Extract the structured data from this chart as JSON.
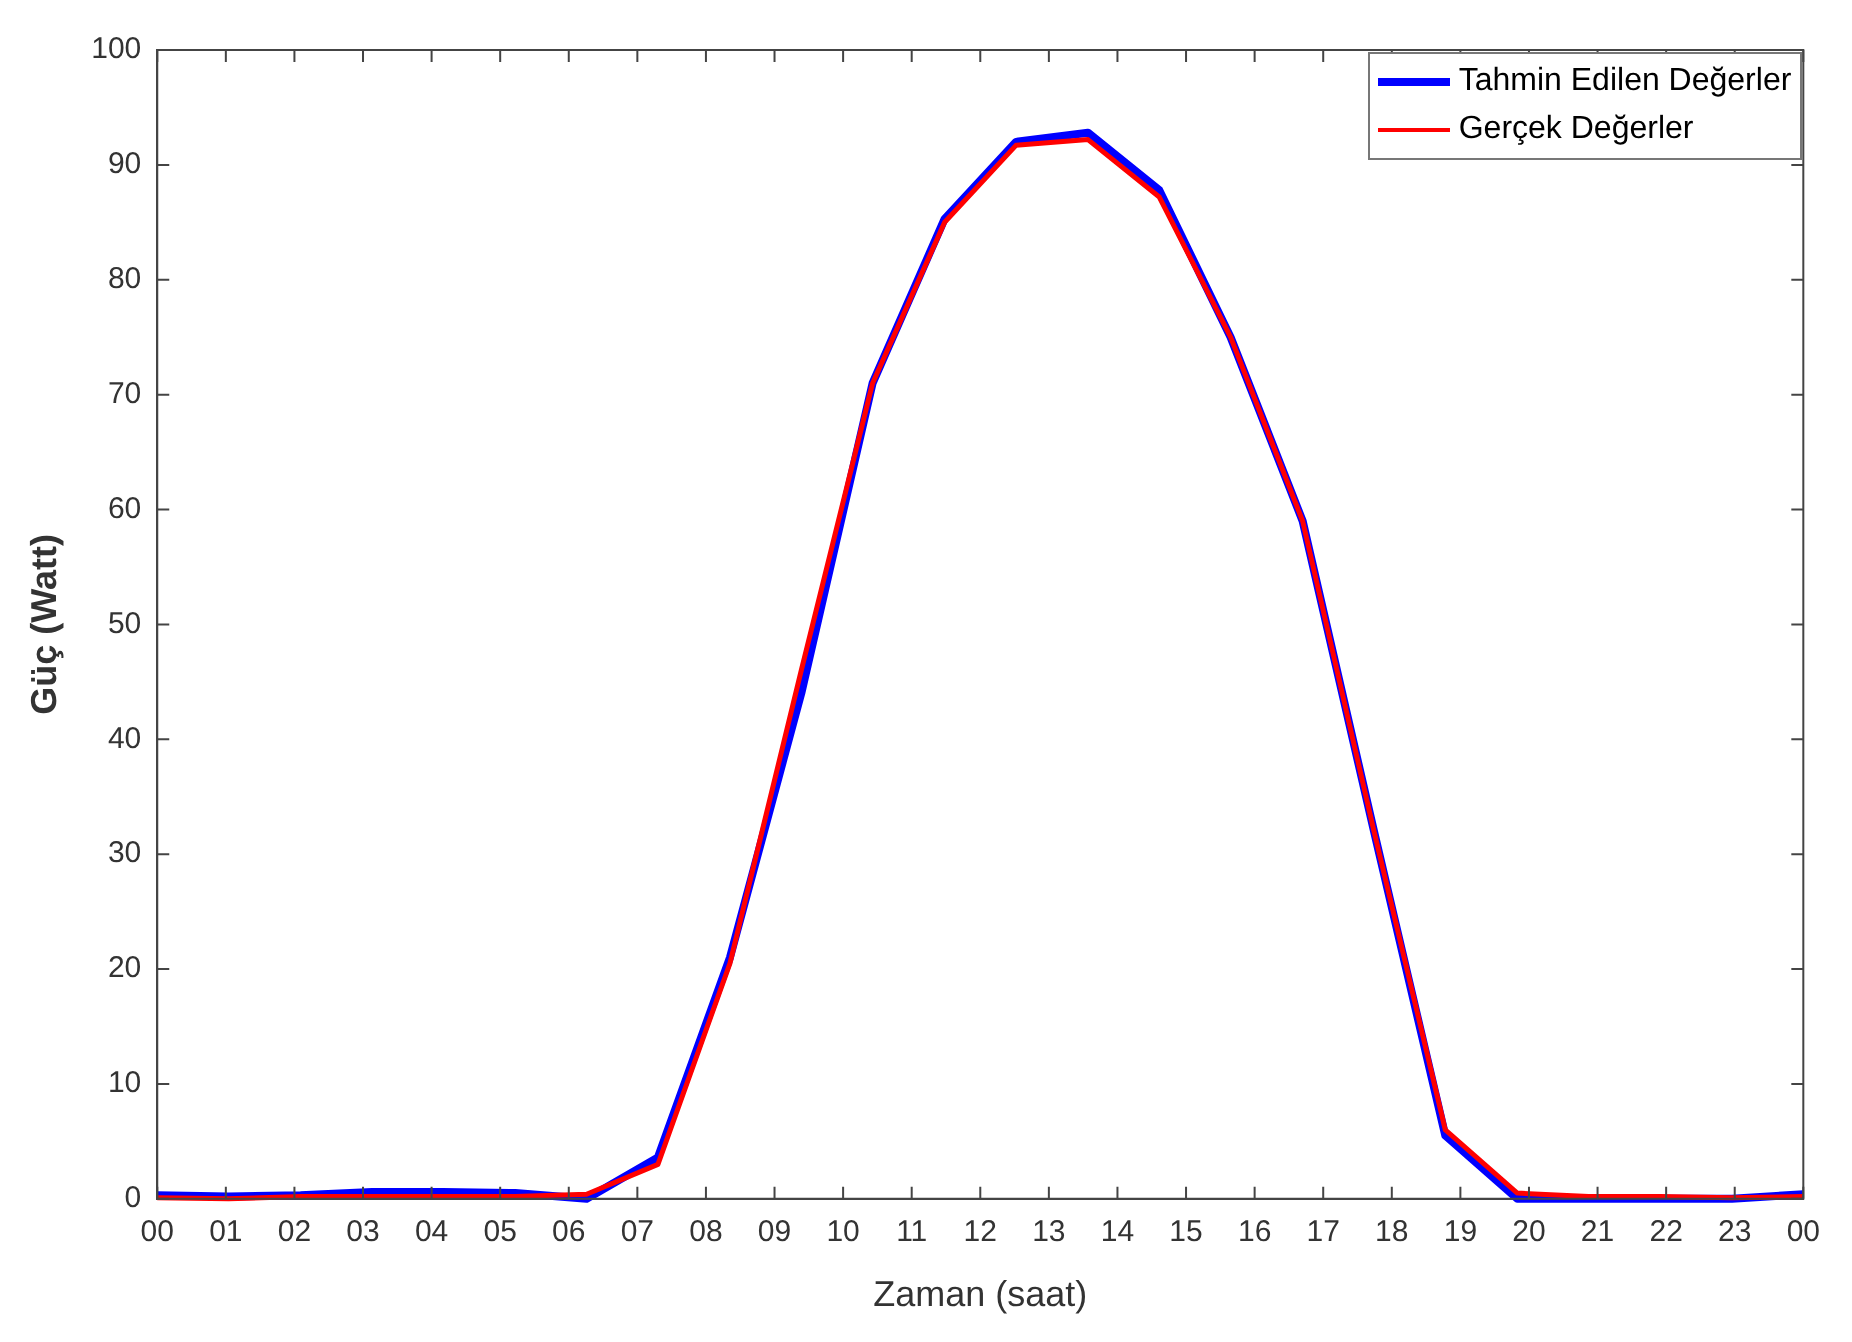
{
  "chart_data": {
    "type": "line",
    "xlabel": "Zaman (saat)",
    "ylabel": "Güç (Watt)",
    "x": [
      0,
      1.04,
      2.09,
      3.13,
      4.17,
      5.22,
      6.26,
      7.3,
      8.35,
      9.39,
      10.43,
      11.48,
      12.52,
      13.57,
      14.61,
      15.65,
      16.7,
      17.74,
      18.78,
      19.83,
      20.87,
      21.91,
      22.96,
      24
    ],
    "series": [
      {
        "name": "Tahmin Edilen Değerler",
        "color": "#0000ff",
        "values": [
          0.3,
          0.2,
          0.3,
          0.6,
          0.6,
          0.5,
          0,
          3.6,
          21,
          44,
          71,
          85.3,
          92,
          92.8,
          87.8,
          75,
          59,
          32,
          5.5,
          0,
          0,
          0,
          0,
          0.4
        ]
      },
      {
        "name": "Gerçek Değerler",
        "color": "#ff0000",
        "values": [
          0.1,
          0,
          0.2,
          0.2,
          0.2,
          0.2,
          0.4,
          3,
          20.5,
          46,
          71,
          85,
          91.7,
          92.2,
          87.2,
          75,
          59,
          32,
          6,
          0.5,
          0.2,
          0.2,
          0.1,
          0.2
        ]
      }
    ],
    "xlim": [
      0,
      24
    ],
    "xticks": [
      {
        "value": 0,
        "label": "00"
      },
      {
        "value": 1,
        "label": "01"
      },
      {
        "value": 2,
        "label": "02"
      },
      {
        "value": 3,
        "label": "03"
      },
      {
        "value": 4,
        "label": "04"
      },
      {
        "value": 5,
        "label": "05"
      },
      {
        "value": 6,
        "label": "06"
      },
      {
        "value": 7,
        "label": "07"
      },
      {
        "value": 8,
        "label": "08"
      },
      {
        "value": 9,
        "label": "09"
      },
      {
        "value": 10,
        "label": "10"
      },
      {
        "value": 11,
        "label": "11"
      },
      {
        "value": 12,
        "label": "12"
      },
      {
        "value": 13,
        "label": "13"
      },
      {
        "value": 14,
        "label": "14"
      },
      {
        "value": 15,
        "label": "15"
      },
      {
        "value": 16,
        "label": "16"
      },
      {
        "value": 17,
        "label": "17"
      },
      {
        "value": 18,
        "label": "18"
      },
      {
        "value": 19,
        "label": "19"
      },
      {
        "value": 20,
        "label": "20"
      },
      {
        "value": 21,
        "label": "21"
      },
      {
        "value": 22,
        "label": "22"
      },
      {
        "value": 23,
        "label": "23"
      },
      {
        "value": 24,
        "label": "00"
      }
    ],
    "ylim": [
      0,
      100
    ],
    "yticks": [
      0,
      10,
      20,
      30,
      40,
      50,
      60,
      70,
      80,
      90,
      100
    ],
    "grid": false,
    "legend": "top right",
    "marker": "none",
    "line_style": "solid"
  }
}
